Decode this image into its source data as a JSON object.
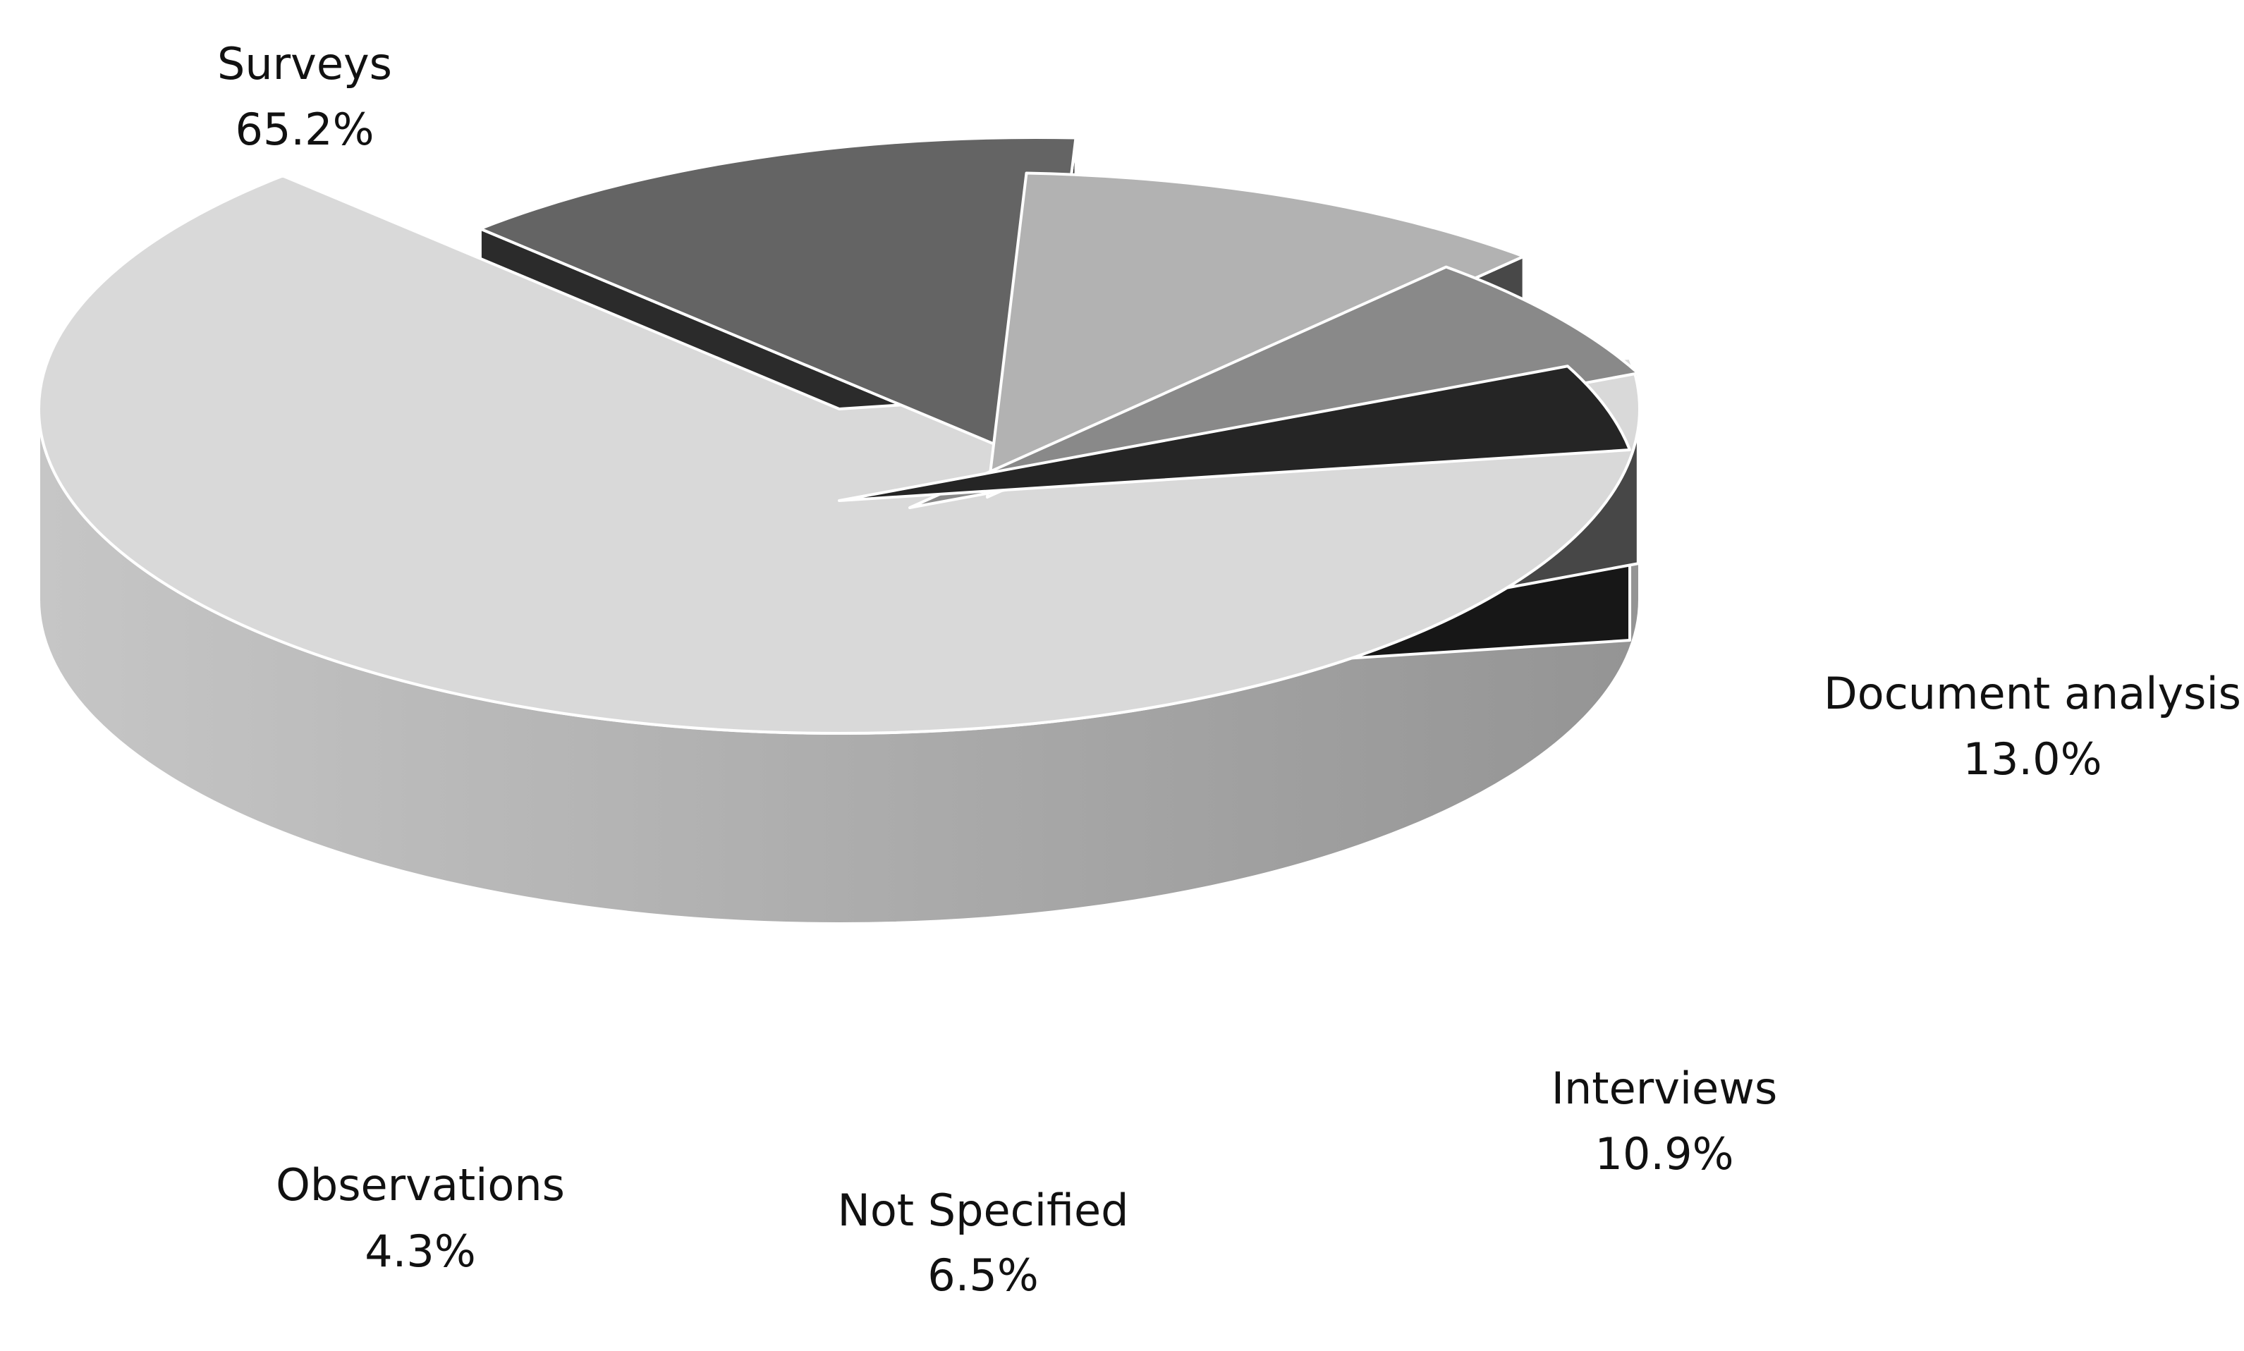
{
  "chart_data": {
    "type": "pie",
    "title": "",
    "style": "3d-exploded",
    "slices": [
      {
        "label": "Surveys",
        "value": 65.2,
        "value_label": "65.2%",
        "top_color": "#d9d9d9",
        "side_color": "#b4b4b4"
      },
      {
        "label": "Document analysis",
        "value": 13.0,
        "value_label": "13.0%",
        "top_color": "#646464",
        "side_color": "#2b2b2b"
      },
      {
        "label": "Interviews",
        "value": 10.9,
        "value_label": "10.9%",
        "top_color": "#b2b2b2",
        "side_color": "#484848"
      },
      {
        "label": "Not Specified",
        "value": 6.5,
        "value_label": "6.5%",
        "top_color": "#898989",
        "side_color": "#474747"
      },
      {
        "label": "Observations",
        "value": 4.3,
        "value_label": "4.3%",
        "top_color": "#252525",
        "side_color": "#171717"
      }
    ]
  }
}
